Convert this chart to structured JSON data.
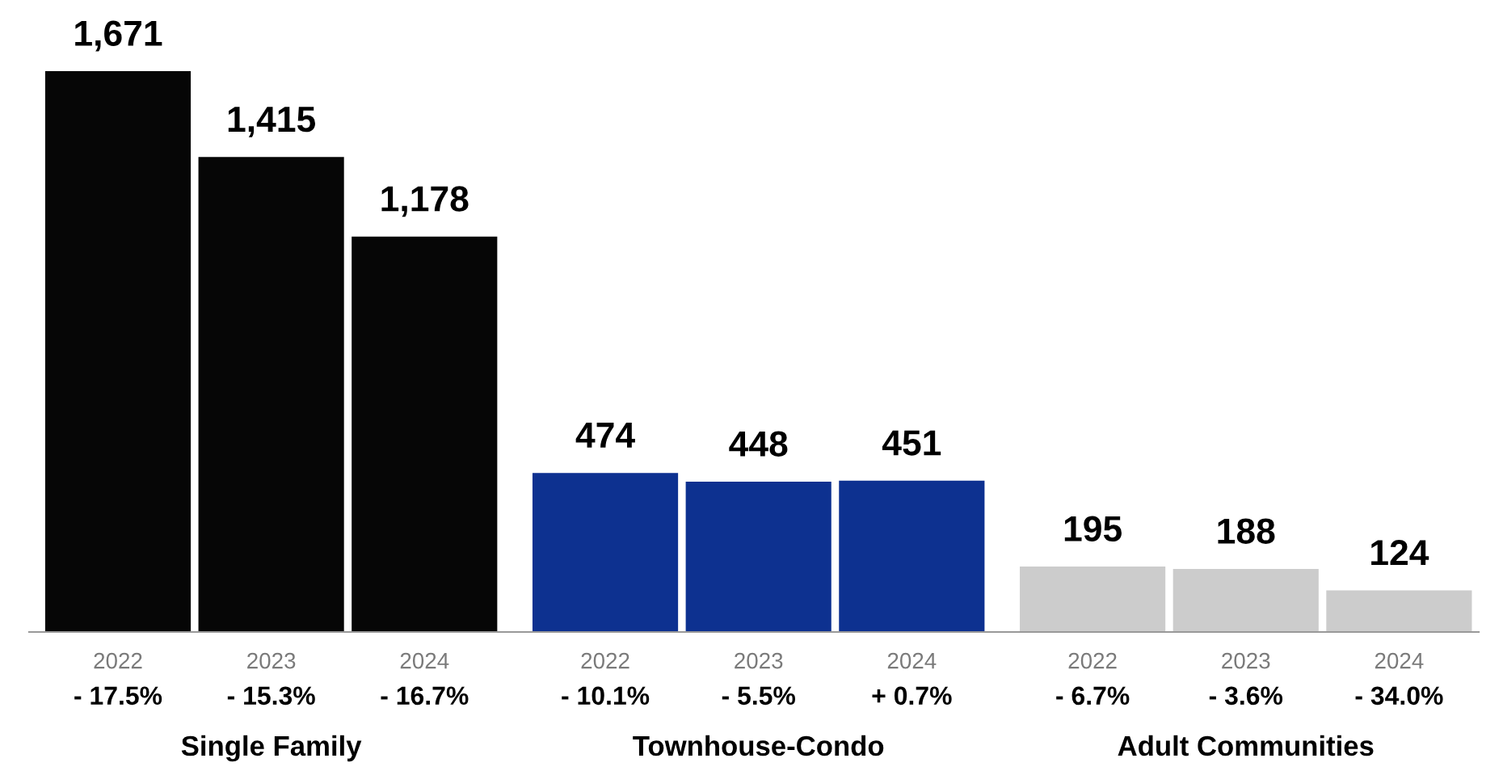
{
  "chart_data": {
    "type": "bar",
    "categories": [
      "2022\n- 17.5%",
      "2023\n- 15.3%",
      "2024\n- 16.7%",
      "2022\n- 10.1%",
      "2023\n- 5.5%",
      "2024\n+ 0.7%",
      "2022\n- 6.7%",
      "2023\n- 3.6%",
      "2024\n- 34.0%"
    ],
    "values": [
      1671,
      1415,
      1178,
      474,
      448,
      451,
      195,
      188,
      124
    ],
    "colors": [
      "#060606",
      "#060606",
      "#060606",
      "#0d3190",
      "#0d3190",
      "#0d3190",
      "#cccccc",
      "#cccccc",
      "#cccccc"
    ],
    "value_labels": [
      "1,671",
      "1,415",
      "1,178",
      "474",
      "448",
      "451",
      "195",
      "188",
      "124"
    ],
    "annotations": [
      "Single Family",
      "Townhouse-Condo",
      "Adult Communities"
    ]
  }
}
